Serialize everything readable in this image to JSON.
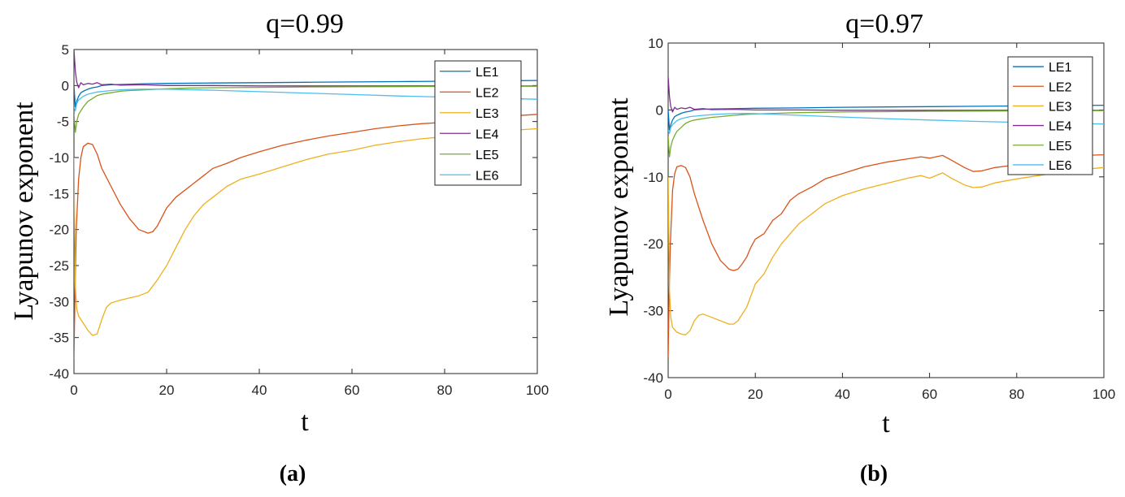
{
  "chart_data": [
    {
      "type": "line",
      "title": "q=0.99",
      "xlabel": "t",
      "ylabel": "Lyapunov exponent",
      "panel_label": "(a)",
      "xlim": [
        0,
        100
      ],
      "ylim": [
        -40,
        5
      ],
      "xticks": [
        0,
        20,
        40,
        60,
        80,
        100
      ],
      "yticks": [
        -40,
        -35,
        -30,
        -25,
        -20,
        -15,
        -10,
        -5,
        0,
        5
      ],
      "grid": false,
      "legend_position": "top-right",
      "series": [
        {
          "name": "LE1",
          "color": "#0072BD",
          "x": [
            0,
            0.3,
            0.6,
            1,
            1.5,
            2,
            3,
            4,
            5,
            6,
            8,
            10,
            15,
            20,
            30,
            40,
            50,
            60,
            70,
            80,
            90,
            100
          ],
          "y": [
            0,
            -3,
            -2.2,
            -1.5,
            -1,
            -0.8,
            -0.5,
            -0.3,
            -0.2,
            0,
            0.1,
            0.15,
            0.25,
            0.3,
            0.35,
            0.4,
            0.45,
            0.5,
            0.55,
            0.6,
            0.65,
            0.7
          ]
        },
        {
          "name": "LE2",
          "color": "#D95319",
          "x": [
            0,
            0.2,
            0.5,
            1,
            1.5,
            2,
            3,
            4,
            5,
            6,
            8,
            10,
            12,
            14,
            16,
            17,
            18,
            20,
            22,
            25,
            28,
            30,
            33,
            36,
            40,
            45,
            50,
            55,
            60,
            65,
            70,
            75,
            80,
            85,
            90,
            95,
            100
          ],
          "y": [
            -38,
            -30,
            -20,
            -13,
            -10,
            -8.5,
            -8,
            -8.2,
            -9.5,
            -11.5,
            -14,
            -16.5,
            -18.5,
            -20,
            -20.5,
            -20.3,
            -19.5,
            -17,
            -15.5,
            -14,
            -12.5,
            -11.5,
            -10.8,
            -10,
            -9.2,
            -8.3,
            -7.6,
            -7,
            -6.5,
            -6,
            -5.6,
            -5.3,
            -5.1,
            -4.8,
            -4.5,
            -4.2,
            -4
          ]
        },
        {
          "name": "LE3",
          "color": "#EDB120",
          "x": [
            0,
            0.3,
            0.6,
            1,
            2,
            3,
            4,
            5,
            6,
            7,
            8,
            10,
            12,
            14,
            16,
            18,
            20,
            22,
            24,
            26,
            28,
            30,
            33,
            36,
            40,
            45,
            50,
            55,
            60,
            65,
            70,
            75,
            80,
            85,
            90,
            95,
            100
          ],
          "y": [
            -10,
            -28,
            -31,
            -32,
            -33,
            -34,
            -34.7,
            -34.5,
            -32.5,
            -30.8,
            -30.2,
            -29.8,
            -29.5,
            -29.2,
            -28.7,
            -27,
            -25,
            -22.5,
            -20,
            -18,
            -16.5,
            -15.5,
            -14,
            -13,
            -12.3,
            -11.3,
            -10.3,
            -9.5,
            -9,
            -8.3,
            -7.8,
            -7.4,
            -7.1,
            -6.8,
            -6.5,
            -6.2,
            -6
          ]
        },
        {
          "name": "LE4",
          "color": "#7E2F8E",
          "x": [
            0,
            0.3,
            0.6,
            1,
            1.5,
            2,
            3,
            4,
            5,
            6,
            8,
            10,
            15,
            20,
            30,
            40,
            50,
            60,
            70,
            80,
            90,
            100
          ],
          "y": [
            5,
            2,
            0.5,
            -0.3,
            0.4,
            0.1,
            0.3,
            0.2,
            0.4,
            0.1,
            0.2,
            0.05,
            0.1,
            0,
            0,
            -0.05,
            -0.05,
            -0.05,
            -0.05,
            -0.05,
            -0.05,
            -0.05
          ]
        },
        {
          "name": "LE5",
          "color": "#77AC30",
          "x": [
            0,
            0.3,
            0.6,
            1,
            1.5,
            2,
            3,
            4,
            5,
            6,
            8,
            10,
            12,
            15,
            18,
            20,
            25,
            30,
            40,
            50,
            60,
            70,
            80,
            90,
            100
          ],
          "y": [
            -4,
            -6.5,
            -5,
            -4,
            -3.5,
            -3,
            -2.2,
            -1.8,
            -1.4,
            -1.2,
            -1,
            -0.8,
            -0.7,
            -0.6,
            -0.5,
            -0.45,
            -0.35,
            -0.3,
            -0.25,
            -0.2,
            -0.18,
            -0.15,
            -0.12,
            -0.1,
            -0.1
          ]
        },
        {
          "name": "LE6",
          "color": "#4DBEEE",
          "x": [
            0,
            0.3,
            0.6,
            1,
            2,
            3,
            5,
            8,
            10,
            12,
            15,
            18,
            20,
            30,
            40,
            50,
            60,
            70,
            80,
            90,
            100
          ],
          "y": [
            -3,
            -3.5,
            -2.5,
            -2,
            -1.5,
            -1.2,
            -0.9,
            -0.7,
            -0.6,
            -0.55,
            -0.5,
            -0.5,
            -0.5,
            -0.65,
            -0.85,
            -1.05,
            -1.25,
            -1.45,
            -1.6,
            -1.75,
            -1.9
          ]
        }
      ]
    },
    {
      "type": "line",
      "title": "q=0.97",
      "xlabel": "t",
      "ylabel": "Lyapunov exponent",
      "panel_label": "(b)",
      "xlim": [
        0,
        100
      ],
      "ylim": [
        -40,
        10
      ],
      "xticks": [
        0,
        20,
        40,
        60,
        80,
        100
      ],
      "yticks": [
        -40,
        -30,
        -20,
        -10,
        0,
        10
      ],
      "grid": false,
      "legend_position": "top-right",
      "series": [
        {
          "name": "LE1",
          "color": "#0072BD",
          "x": [
            0,
            0.3,
            0.6,
            1,
            1.5,
            2,
            3,
            4,
            5,
            6,
            8,
            10,
            15,
            20,
            30,
            40,
            50,
            60,
            70,
            80,
            90,
            100
          ],
          "y": [
            0,
            -3,
            -2.2,
            -1.5,
            -1,
            -0.8,
            -0.5,
            -0.3,
            -0.2,
            0,
            0.1,
            0.15,
            0.2,
            0.25,
            0.3,
            0.4,
            0.45,
            0.5,
            0.55,
            0.6,
            0.65,
            0.7
          ]
        },
        {
          "name": "LE2",
          "color": "#D95319",
          "x": [
            0,
            0.2,
            0.5,
            1,
            1.5,
            2,
            3,
            4,
            5,
            6,
            8,
            10,
            12,
            14,
            15,
            16,
            17,
            18,
            19,
            20,
            22,
            24,
            26,
            28,
            30,
            33,
            36,
            40,
            45,
            50,
            55,
            58,
            60,
            63,
            65,
            68,
            70,
            72,
            75,
            80,
            85,
            90,
            95,
            100
          ],
          "y": [
            -37,
            -28,
            -20,
            -12,
            -9.5,
            -8.5,
            -8.3,
            -8.6,
            -10,
            -12.5,
            -16.5,
            -20,
            -22.5,
            -23.8,
            -24,
            -23.8,
            -23,
            -22,
            -20.5,
            -19.3,
            -18.5,
            -16.5,
            -15.5,
            -13.5,
            -12.5,
            -11.5,
            -10.3,
            -9.5,
            -8.5,
            -7.8,
            -7.3,
            -7,
            -7.2,
            -6.8,
            -7.5,
            -8.6,
            -9.2,
            -9.1,
            -8.6,
            -8.2,
            -7.6,
            -7.1,
            -6.8,
            -6.7
          ]
        },
        {
          "name": "LE3",
          "color": "#EDB120",
          "x": [
            0,
            0.3,
            0.6,
            1,
            2,
            3,
            4,
            5,
            6,
            7,
            8,
            10,
            12,
            14,
            15,
            16,
            18,
            20,
            22,
            24,
            26,
            28,
            30,
            33,
            36,
            40,
            45,
            50,
            55,
            58,
            60,
            63,
            65,
            68,
            70,
            72,
            75,
            80,
            85,
            90,
            95,
            100
          ],
          "y": [
            -10,
            -27,
            -31,
            -32.5,
            -33.2,
            -33.5,
            -33.6,
            -33,
            -31.5,
            -30.7,
            -30.5,
            -31,
            -31.5,
            -32,
            -32,
            -31.5,
            -29.5,
            -26,
            -24.5,
            -22,
            -20,
            -18.5,
            -17,
            -15.5,
            -14,
            -12.8,
            -11.8,
            -11,
            -10.2,
            -9.8,
            -10.2,
            -9.4,
            -10.2,
            -11.2,
            -11.6,
            -11.5,
            -10.9,
            -10.3,
            -9.8,
            -9.3,
            -8.9,
            -8.6
          ]
        },
        {
          "name": "LE4",
          "color": "#7E2F8E",
          "x": [
            0,
            0.3,
            0.6,
            1,
            1.5,
            2,
            3,
            4,
            5,
            6,
            8,
            10,
            15,
            20,
            30,
            40,
            50,
            60,
            70,
            80,
            90,
            100
          ],
          "y": [
            5,
            2,
            0.5,
            -0.3,
            0.4,
            0.1,
            0.3,
            0.2,
            0.4,
            0.1,
            0.2,
            0.05,
            0.1,
            0,
            0,
            -0.05,
            -0.05,
            -0.05,
            -0.05,
            -0.05,
            -0.05,
            -0.05
          ]
        },
        {
          "name": "LE5",
          "color": "#77AC30",
          "x": [
            0,
            0.3,
            0.6,
            1,
            1.5,
            2,
            3,
            4,
            5,
            6,
            8,
            10,
            12,
            15,
            18,
            20,
            25,
            30,
            40,
            50,
            60,
            70,
            80,
            90,
            100
          ],
          "y": [
            -4,
            -7,
            -5.5,
            -4.5,
            -3.8,
            -3.2,
            -2.6,
            -2,
            -1.7,
            -1.5,
            -1.3,
            -1.1,
            -1,
            -0.8,
            -0.65,
            -0.6,
            -0.5,
            -0.4,
            -0.3,
            -0.25,
            -0.2,
            -0.17,
            -0.14,
            -0.12,
            -0.1
          ]
        },
        {
          "name": "LE6",
          "color": "#4DBEEE",
          "x": [
            0,
            0.3,
            0.6,
            1,
            2,
            3,
            5,
            8,
            10,
            12,
            15,
            18,
            20,
            30,
            40,
            50,
            60,
            70,
            80,
            90,
            100
          ],
          "y": [
            -3,
            -3.5,
            -2.6,
            -2.2,
            -1.6,
            -1.3,
            -1,
            -0.8,
            -0.7,
            -0.62,
            -0.55,
            -0.52,
            -0.55,
            -0.8,
            -1.05,
            -1.3,
            -1.5,
            -1.7,
            -1.85,
            -2,
            -2.1
          ]
        }
      ]
    }
  ]
}
